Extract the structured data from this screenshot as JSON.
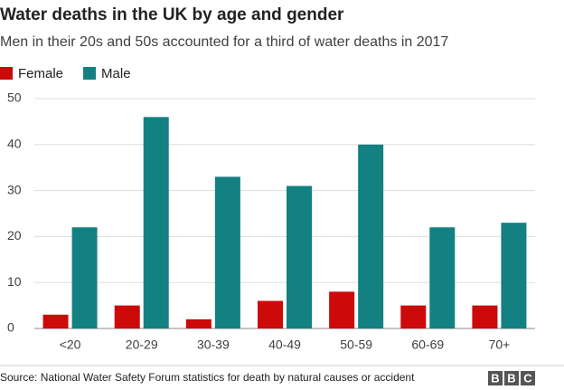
{
  "chart_data": {
    "type": "bar",
    "title": "Water deaths in the UK by age and gender",
    "subtitle": "Men in their 20s and 50s accounted for a third of water deaths in 2017",
    "categories": [
      "<20",
      "20-29",
      "30-39",
      "40-49",
      "50-59",
      "60-69",
      "70+"
    ],
    "series": [
      {
        "name": "Female",
        "color": "#cc0a0a",
        "values": [
          3,
          5,
          2,
          6,
          8,
          5,
          5
        ]
      },
      {
        "name": "Male",
        "color": "#138082",
        "values": [
          22,
          46,
          33,
          31,
          40,
          22,
          23
        ]
      }
    ],
    "ylim": [
      0,
      50
    ],
    "yticks": [
      0,
      10,
      20,
      30,
      40,
      50
    ],
    "grid": true,
    "legend": "top-left",
    "source": "Source: National Water Safety Forum statistics for death by natural causes or accident",
    "logo": [
      "B",
      "B",
      "C"
    ]
  }
}
